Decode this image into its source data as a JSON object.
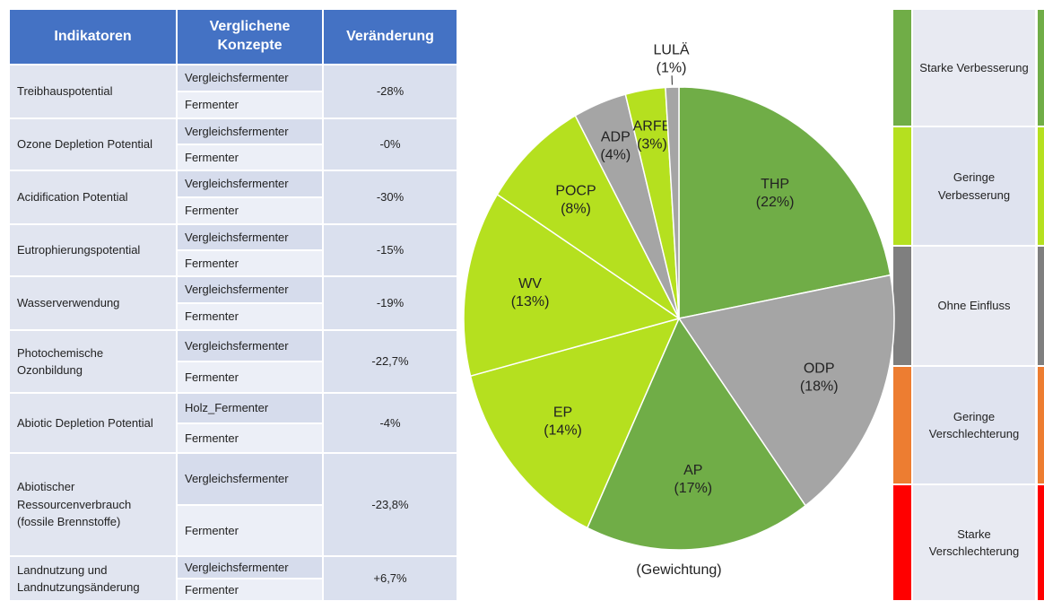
{
  "table": {
    "headers": [
      "Indikatoren",
      "Verglichene Konzepte",
      "Veränderung"
    ],
    "rows": [
      {
        "indicator": "Treibhauspotential",
        "concepts": [
          "Vergleichsfermenter",
          "Fermenter"
        ],
        "change": "-28%"
      },
      {
        "indicator": "Ozone Depletion Potential",
        "concepts": [
          "Vergleichsfermenter",
          "Fermenter"
        ],
        "change": "-0%"
      },
      {
        "indicator": "Acidification Potential",
        "concepts": [
          "Vergleichsfermenter",
          "Fermenter"
        ],
        "change": "-30%"
      },
      {
        "indicator": "Eutrophierungspotential",
        "concepts": [
          "Vergleichsfermenter",
          "Fermenter"
        ],
        "change": "-15%"
      },
      {
        "indicator": "Wasserverwendung",
        "concepts": [
          "Vergleichsfermenter",
          "Fermenter"
        ],
        "change": "-19%"
      },
      {
        "indicator": "Photochemische Ozonbildung",
        "concepts": [
          "Vergleichsfermenter",
          "Fermenter"
        ],
        "change": "-22,7%"
      },
      {
        "indicator": "Abiotic Depletion Potential",
        "concepts": [
          "Holz_Fermenter",
          "Fermenter"
        ],
        "change": "-4%"
      },
      {
        "indicator": "Abiotischer Ressourcenverbrauch (fossile Brennstoffe)",
        "concepts": [
          "Vergleichsfermenter",
          "Fermenter"
        ],
        "change": "-23,8%"
      },
      {
        "indicator": "Landnutzung und Landnutzungsänderung",
        "concepts": [
          "Vergleichsfermenter",
          "Fermenter"
        ],
        "change": "+6,7%"
      }
    ]
  },
  "chart_data": {
    "type": "pie",
    "subtitle": "(Gewichtung)",
    "categories": [
      "THP",
      "ODP",
      "AP",
      "EP",
      "WV",
      "POCP",
      "ADP",
      "ARFB",
      "LULÄ"
    ],
    "values": [
      22,
      18,
      17,
      14,
      13,
      8,
      4,
      3,
      1
    ],
    "value_labels": [
      "(22%)",
      "(18%)",
      "(17%)",
      "(14%)",
      "(13%)",
      "(8%)",
      "(4%)",
      "(3%)",
      "(1%)"
    ],
    "colors": [
      "#70ad47",
      "#a5a5a5",
      "#70ad47",
      "#b5e01f",
      "#b5e01f",
      "#b5e01f",
      "#a5a5a5",
      "#b5e01f",
      "#a5a5a5"
    ]
  },
  "legend": {
    "items": [
      {
        "label": "Starke Verbesserung",
        "color": "#70ad47"
      },
      {
        "label": "Geringe Verbesserung",
        "color": "#b5e01f"
      },
      {
        "label": "Ohne Einfluss",
        "color": "#7f7f7f"
      },
      {
        "label": "Geringe Verschlechterung",
        "color": "#ed7d31"
      },
      {
        "label": "Starke Verschlechterung",
        "color": "#ff0000"
      }
    ]
  }
}
